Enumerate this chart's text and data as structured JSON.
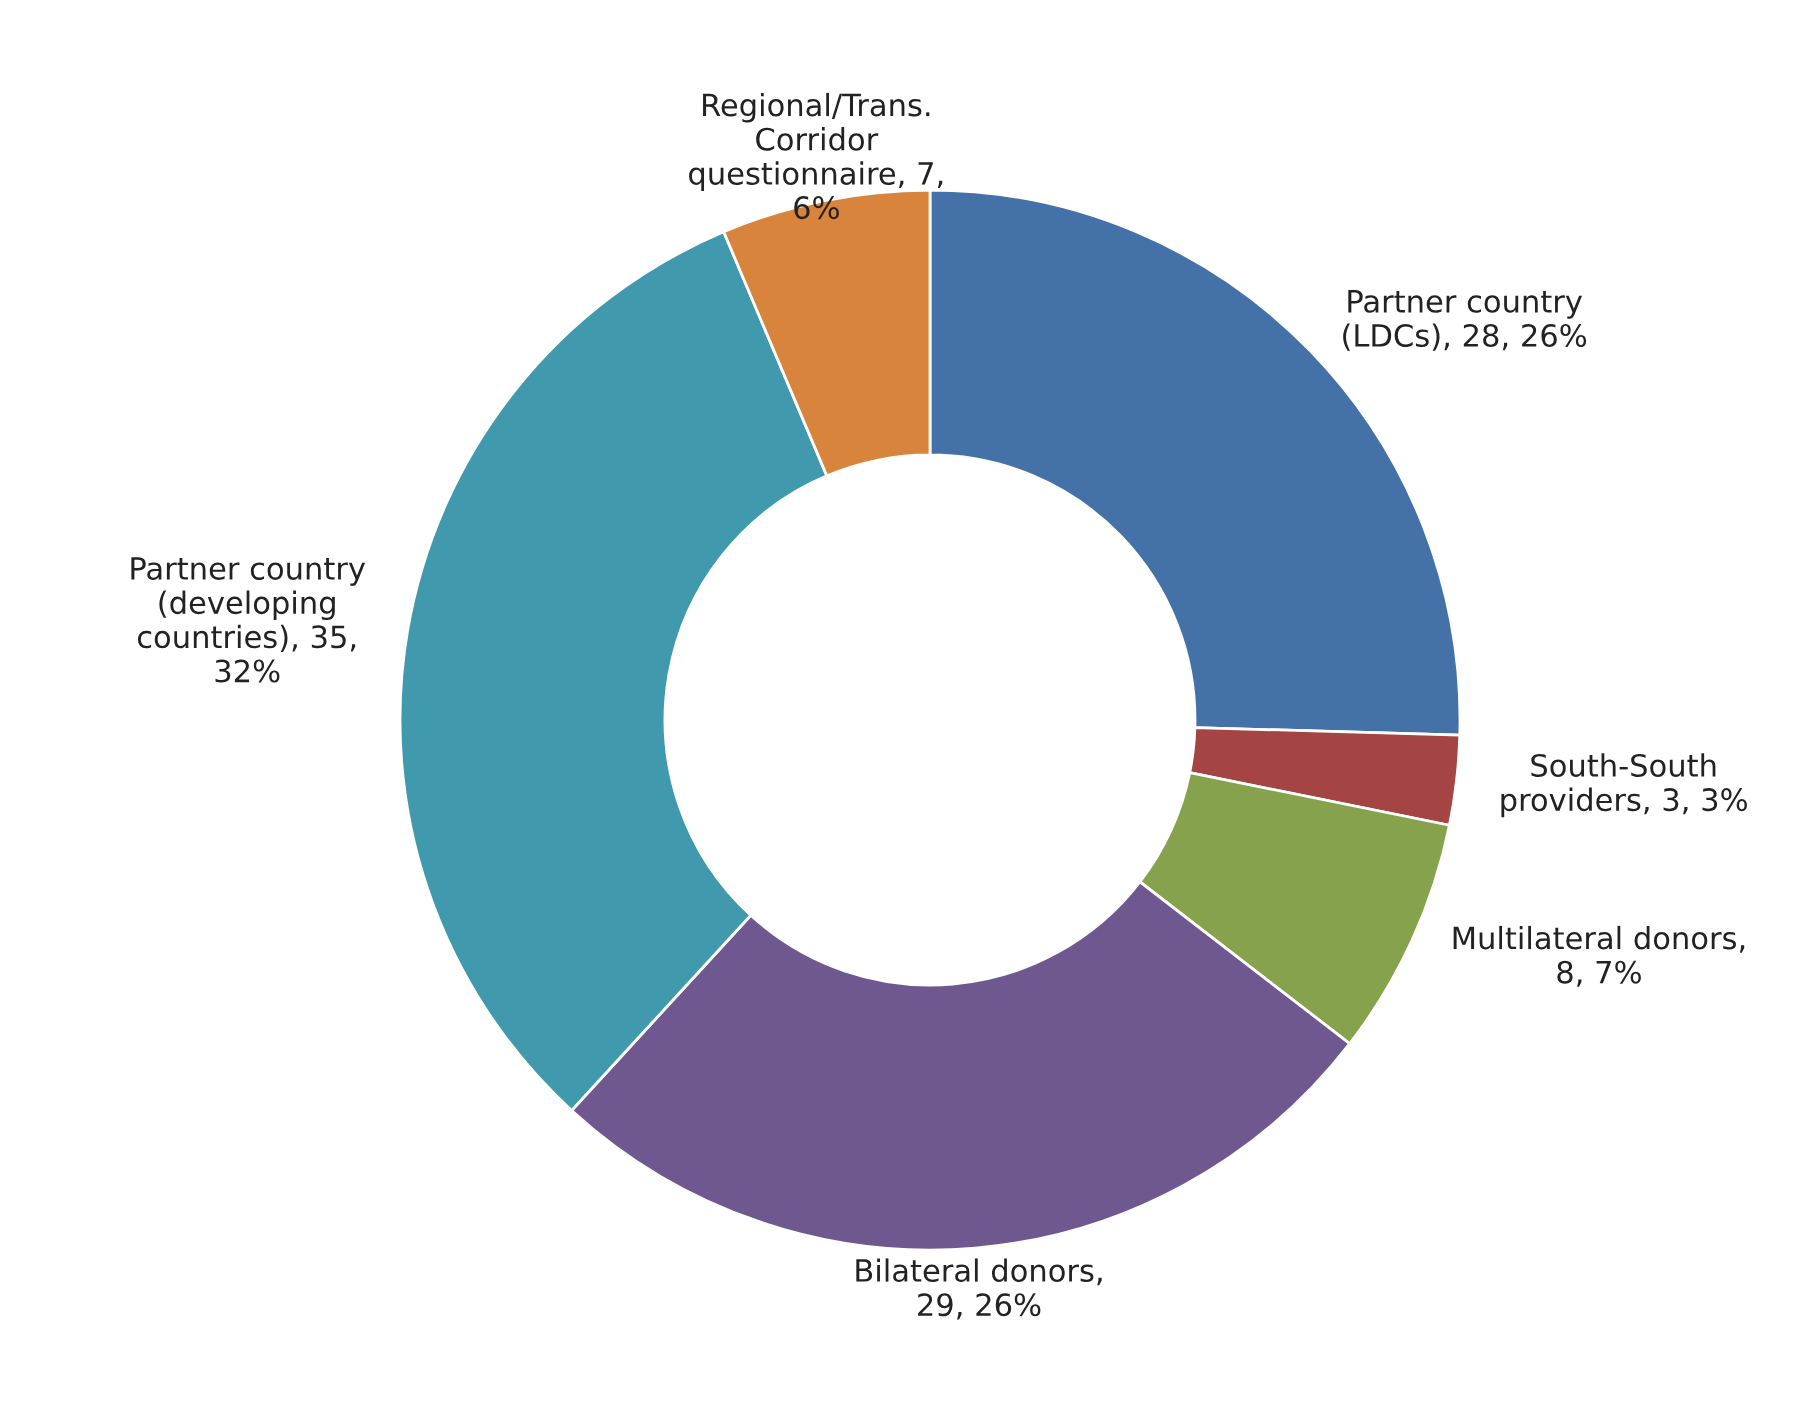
{
  "chart_data": {
    "type": "donut",
    "categories": [
      "Partner country\n(LDCs)",
      "South-South\nproviders",
      "Multilateral donors",
      "Bilateral donors",
      "Partner country\n(developing\ncountries)",
      "Regional/Trans.\nCorridor\nquestionnaire"
    ],
    "values": [
      28,
      3,
      8,
      29,
      35,
      7
    ],
    "colors": [
      "#4472a8",
      "#a54543",
      "#87a24d",
      "#6f5890",
      "#4199ae",
      "#d9843c"
    ],
    "value_labels": [
      ", 28, 26%",
      ", 3, 3%",
      ",\n8, 7%",
      ",\n29, 26%",
      ", 35,\n32%",
      ", 7,\n6%"
    ],
    "legend": false
  }
}
